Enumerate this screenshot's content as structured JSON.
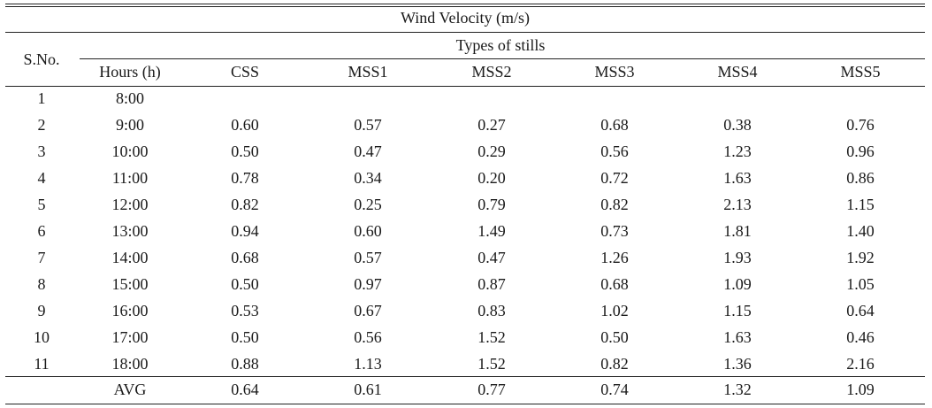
{
  "table": {
    "group_title": "Wind Velocity (m/s)",
    "sno_header": "S.No.",
    "subgroup_title": "Types of stills",
    "columns": [
      "Hours (h)",
      "CSS",
      "MSS1",
      "MSS2",
      "MSS3",
      "MSS4",
      "MSS5"
    ],
    "rows": [
      {
        "sno": "1",
        "hour": "8:00",
        "vals": [
          "",
          "",
          "",
          "",
          "",
          ""
        ]
      },
      {
        "sno": "2",
        "hour": "9:00",
        "vals": [
          "0.60",
          "0.57",
          "0.27",
          "0.68",
          "0.38",
          "0.76"
        ]
      },
      {
        "sno": "3",
        "hour": "10:00",
        "vals": [
          "0.50",
          "0.47",
          "0.29",
          "0.56",
          "1.23",
          "0.96"
        ]
      },
      {
        "sno": "4",
        "hour": "11:00",
        "vals": [
          "0.78",
          "0.34",
          "0.20",
          "0.72",
          "1.63",
          "0.86"
        ]
      },
      {
        "sno": "5",
        "hour": "12:00",
        "vals": [
          "0.82",
          "0.25",
          "0.79",
          "0.82",
          "2.13",
          "1.15"
        ]
      },
      {
        "sno": "6",
        "hour": "13:00",
        "vals": [
          "0.94",
          "0.60",
          "1.49",
          "0.73",
          "1.81",
          "1.40"
        ]
      },
      {
        "sno": "7",
        "hour": "14:00",
        "vals": [
          "0.68",
          "0.57",
          "0.47",
          "1.26",
          "1.93",
          "1.92"
        ]
      },
      {
        "sno": "8",
        "hour": "15:00",
        "vals": [
          "0.50",
          "0.97",
          "0.87",
          "0.68",
          "1.09",
          "1.05"
        ]
      },
      {
        "sno": "9",
        "hour": "16:00",
        "vals": [
          "0.53",
          "0.67",
          "0.83",
          "1.02",
          "1.15",
          "0.64"
        ]
      },
      {
        "sno": "10",
        "hour": "17:00",
        "vals": [
          "0.50",
          "0.56",
          "1.52",
          "0.50",
          "1.63",
          "0.46"
        ]
      },
      {
        "sno": "11",
        "hour": "18:00",
        "vals": [
          "0.88",
          "1.13",
          "1.52",
          "0.82",
          "1.36",
          "2.16"
        ]
      }
    ],
    "avg_row": {
      "label": "AVG",
      "vals": [
        "0.64",
        "0.61",
        "0.77",
        "0.74",
        "1.32",
        "1.09"
      ]
    }
  }
}
